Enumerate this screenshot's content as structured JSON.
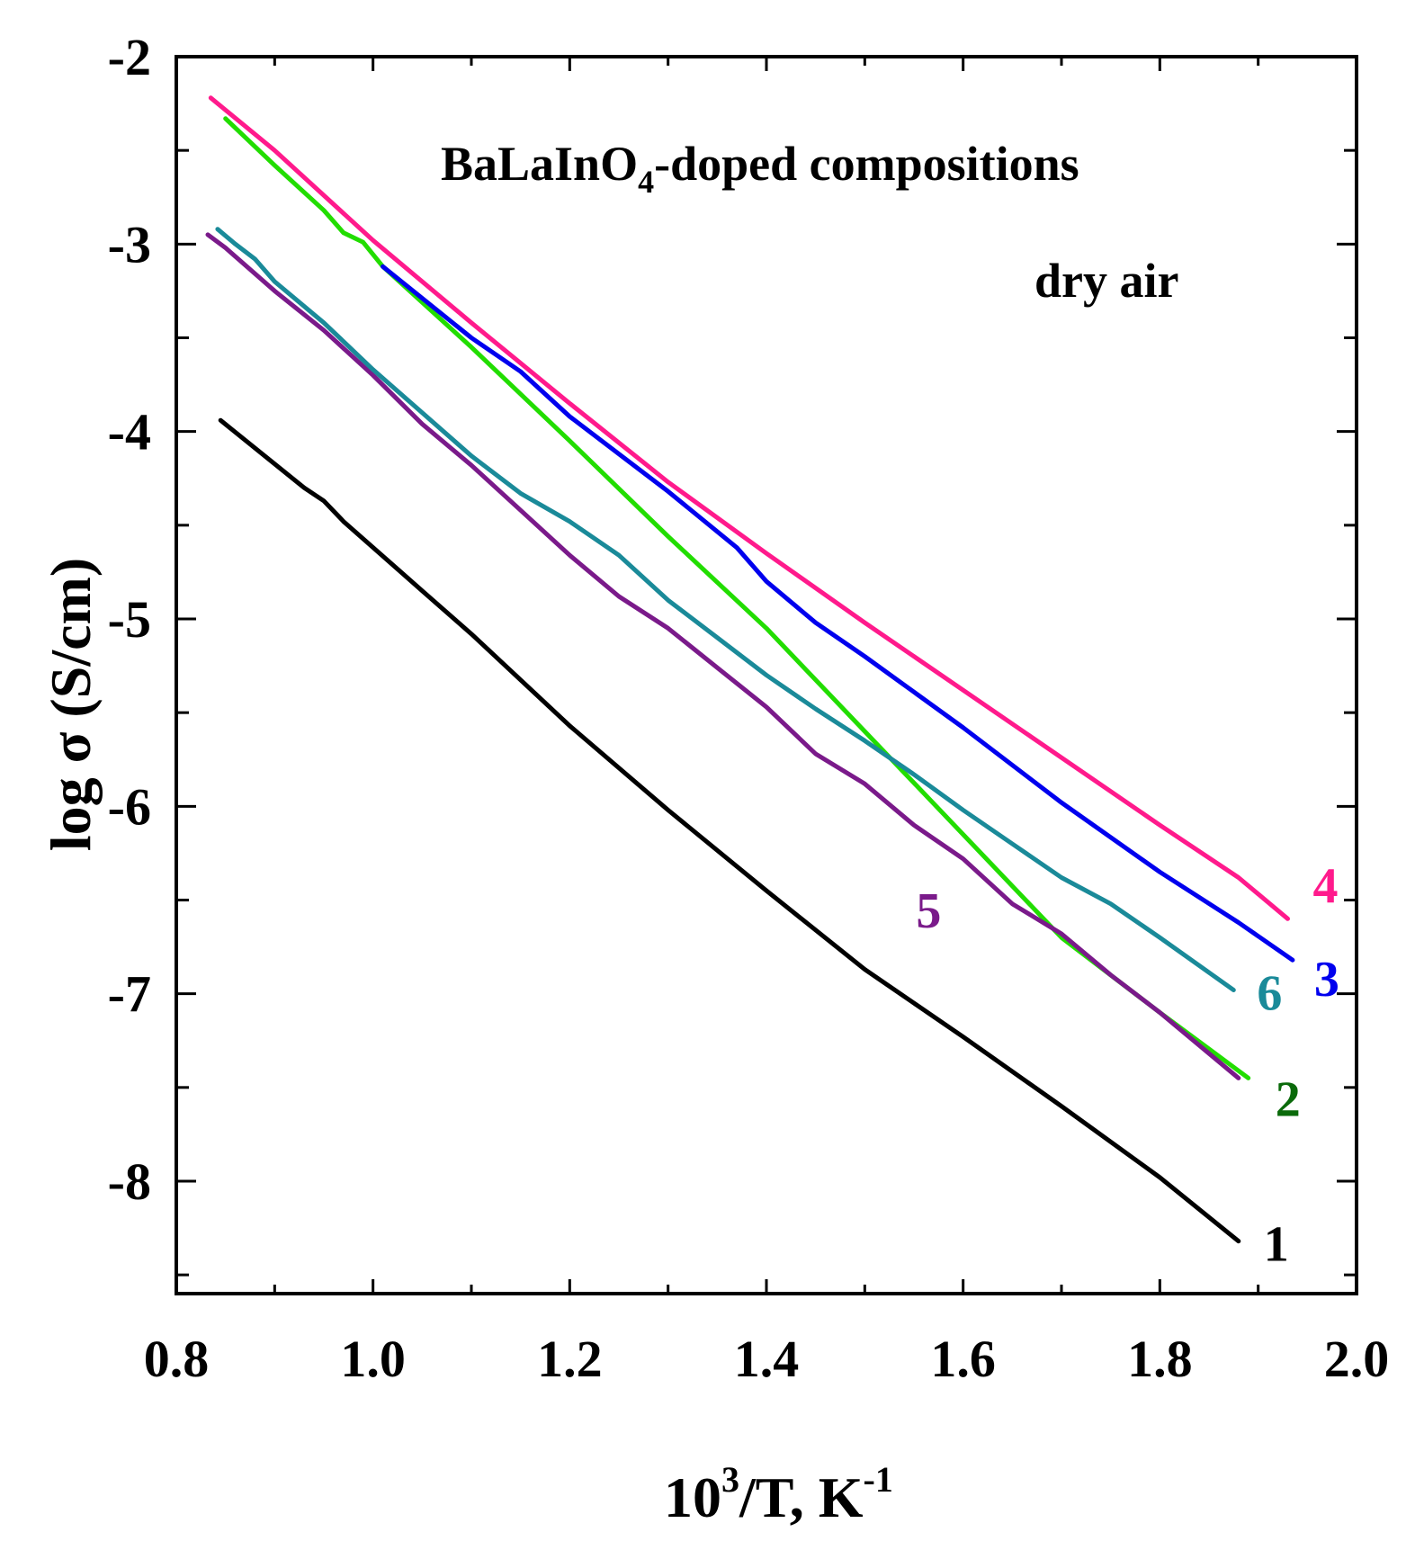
{
  "chart_data": {
    "type": "line",
    "title": "",
    "annotation_main": "BaLaInO",
    "annotation_sub": "4",
    "annotation_rest": "-doped compositions",
    "annotation_condition": "dry air",
    "xlabel_base": "10",
    "xlabel_sup": "3",
    "xlabel_mid": "/T, K",
    "xlabel_sup2": "-1",
    "ylabel": "log σ (S/cm)",
    "xlim": [
      0.8,
      2.0
    ],
    "ylim": [
      -8.6,
      -2.0
    ],
    "x_ticks": [
      0.8,
      1.0,
      1.2,
      1.4,
      1.6,
      1.8,
      2.0
    ],
    "x_tick_labels": [
      "0.8",
      "1.0",
      "1.2",
      "1.4",
      "1.6",
      "1.8",
      "2.0"
    ],
    "y_ticks": [
      -2,
      -3,
      -4,
      -5,
      -6,
      -7,
      -8
    ],
    "y_tick_labels": [
      "-2",
      "-3",
      "-4",
      "-5",
      "-6",
      "-7",
      "-8"
    ],
    "series": [
      {
        "name": "1",
        "label": "1",
        "color": "#000000",
        "x": [
          0.845,
          0.93,
          0.95,
          0.97,
          1.05,
          1.1,
          1.2,
          1.3,
          1.4,
          1.5,
          1.55,
          1.6,
          1.7,
          1.8,
          1.88
        ],
        "y": [
          -3.94,
          -4.3,
          -4.37,
          -4.48,
          -4.85,
          -5.08,
          -5.57,
          -6.02,
          -6.45,
          -6.87,
          -7.05,
          -7.23,
          -7.6,
          -7.98,
          -8.32
        ]
      },
      {
        "name": "2",
        "label": "2",
        "color": "#22dd00",
        "x": [
          0.85,
          0.9,
          0.95,
          0.97,
          0.99,
          1.01,
          1.1,
          1.2,
          1.3,
          1.4,
          1.5,
          1.6,
          1.7,
          1.8,
          1.89
        ],
        "y": [
          -2.33,
          -2.58,
          -2.82,
          -2.94,
          -2.99,
          -3.12,
          -3.55,
          -4.05,
          -4.56,
          -5.05,
          -5.6,
          -6.15,
          -6.7,
          -7.1,
          -7.45
        ]
      },
      {
        "name": "3",
        "label": "3",
        "color": "#0000ee",
        "x": [
          1.01,
          1.1,
          1.15,
          1.2,
          1.3,
          1.37,
          1.4,
          1.45,
          1.5,
          1.6,
          1.7,
          1.8,
          1.88,
          1.935
        ],
        "y": [
          -3.12,
          -3.5,
          -3.68,
          -3.92,
          -4.32,
          -4.62,
          -4.8,
          -5.02,
          -5.2,
          -5.58,
          -5.98,
          -6.35,
          -6.62,
          -6.82
        ]
      },
      {
        "name": "4",
        "label": "4",
        "color": "#ff1a8c",
        "x": [
          0.835,
          0.9,
          1.0,
          1.1,
          1.2,
          1.3,
          1.4,
          1.5,
          1.6,
          1.7,
          1.8,
          1.88,
          1.93
        ],
        "y": [
          -2.22,
          -2.5,
          -2.98,
          -3.42,
          -3.85,
          -4.27,
          -4.65,
          -5.02,
          -5.38,
          -5.74,
          -6.1,
          -6.38,
          -6.6
        ]
      },
      {
        "name": "5",
        "label": "5",
        "color": "#7a1a8a",
        "x": [
          0.832,
          0.85,
          0.9,
          0.95,
          1.0,
          1.05,
          1.1,
          1.15,
          1.2,
          1.25,
          1.3,
          1.35,
          1.4,
          1.45,
          1.5,
          1.55,
          1.6,
          1.65,
          1.7,
          1.75,
          1.8,
          1.88
        ],
        "y": [
          -2.95,
          -3.02,
          -3.25,
          -3.46,
          -3.7,
          -3.96,
          -4.18,
          -4.42,
          -4.66,
          -4.88,
          -5.05,
          -5.26,
          -5.47,
          -5.72,
          -5.88,
          -6.1,
          -6.28,
          -6.52,
          -6.68,
          -6.9,
          -7.1,
          -7.45
        ]
      },
      {
        "name": "6",
        "label": "6",
        "color": "#1a8a99",
        "x": [
          0.842,
          0.86,
          0.88,
          0.9,
          0.95,
          1.0,
          1.05,
          1.1,
          1.15,
          1.2,
          1.25,
          1.3,
          1.35,
          1.4,
          1.45,
          1.5,
          1.55,
          1.6,
          1.65,
          1.7,
          1.75,
          1.8,
          1.875
        ],
        "y": [
          -2.92,
          -3.0,
          -3.08,
          -3.2,
          -3.42,
          -3.67,
          -3.9,
          -4.13,
          -4.33,
          -4.48,
          -4.66,
          -4.9,
          -5.1,
          -5.3,
          -5.48,
          -5.65,
          -5.83,
          -6.02,
          -6.2,
          -6.38,
          -6.52,
          -6.7,
          -6.98
        ]
      }
    ]
  }
}
